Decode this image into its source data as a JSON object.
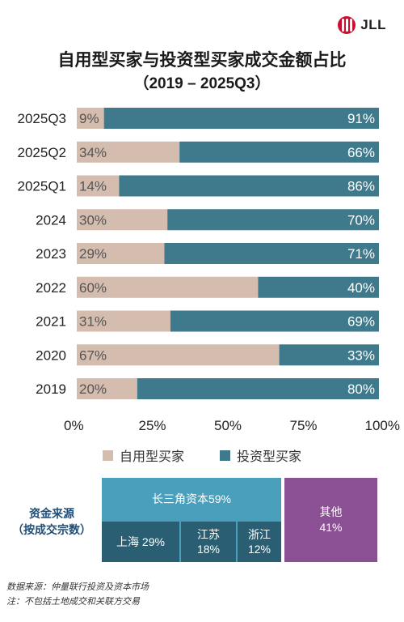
{
  "brand": {
    "name": "JLL",
    "color": "#c8102e"
  },
  "header": {
    "title": "自用型买家与投资型买家成交金额占比",
    "subtitle": "（2019 – 2025Q3）"
  },
  "colors": {
    "owner": "#d4bcae",
    "investor": "#3e7a8c",
    "yangtze": "#4a9fbd",
    "other": "#8b4f93",
    "cell_dark": "#2a5f73",
    "source_label": "#1f4e79"
  },
  "chart_data": {
    "type": "bar",
    "orientation": "horizontal",
    "stacked": true,
    "percent": true,
    "categories": [
      "2025Q3",
      "2025Q2",
      "2025Q1",
      "2024",
      "2023",
      "2022",
      "2021",
      "2020",
      "2019"
    ],
    "series": [
      {
        "name": "自用型买家",
        "values": [
          9,
          34,
          14,
          30,
          29,
          60,
          31,
          67,
          20
        ],
        "labels": [
          "9%",
          "34%",
          "14%",
          "30%",
          "29%",
          "60%",
          "31%",
          "67%",
          "20%"
        ],
        "color": "#d4bcae"
      },
      {
        "name": "投资型买家",
        "values": [
          91,
          66,
          86,
          70,
          71,
          40,
          69,
          33,
          80
        ],
        "labels": [
          "91%",
          "66%",
          "86%",
          "70%",
          "71%",
          "40%",
          "69%",
          "33%",
          "80%"
        ],
        "color": "#3e7a8c"
      }
    ],
    "xlim": [
      0,
      100
    ],
    "x_ticks": [
      "0%",
      "25%",
      "50%",
      "75%",
      "100%"
    ],
    "legend_position": "bottom",
    "grid": false
  },
  "capital_source": {
    "label_line1": "资金来源",
    "label_line2": "（按成交宗数）",
    "yangtze_label": "长三角资本59%",
    "shanghai": "上海 29%",
    "jiangsu_name": "江苏",
    "jiangsu_value": "18%",
    "zhejiang_name": "浙江",
    "zhejiang_value": "12%",
    "other_name": "其他",
    "other_value": "41%"
  },
  "footnotes": {
    "source": "数据来源：仲量联行投资及资本市场",
    "note": "注：不包括土地成交和关联方交易"
  }
}
